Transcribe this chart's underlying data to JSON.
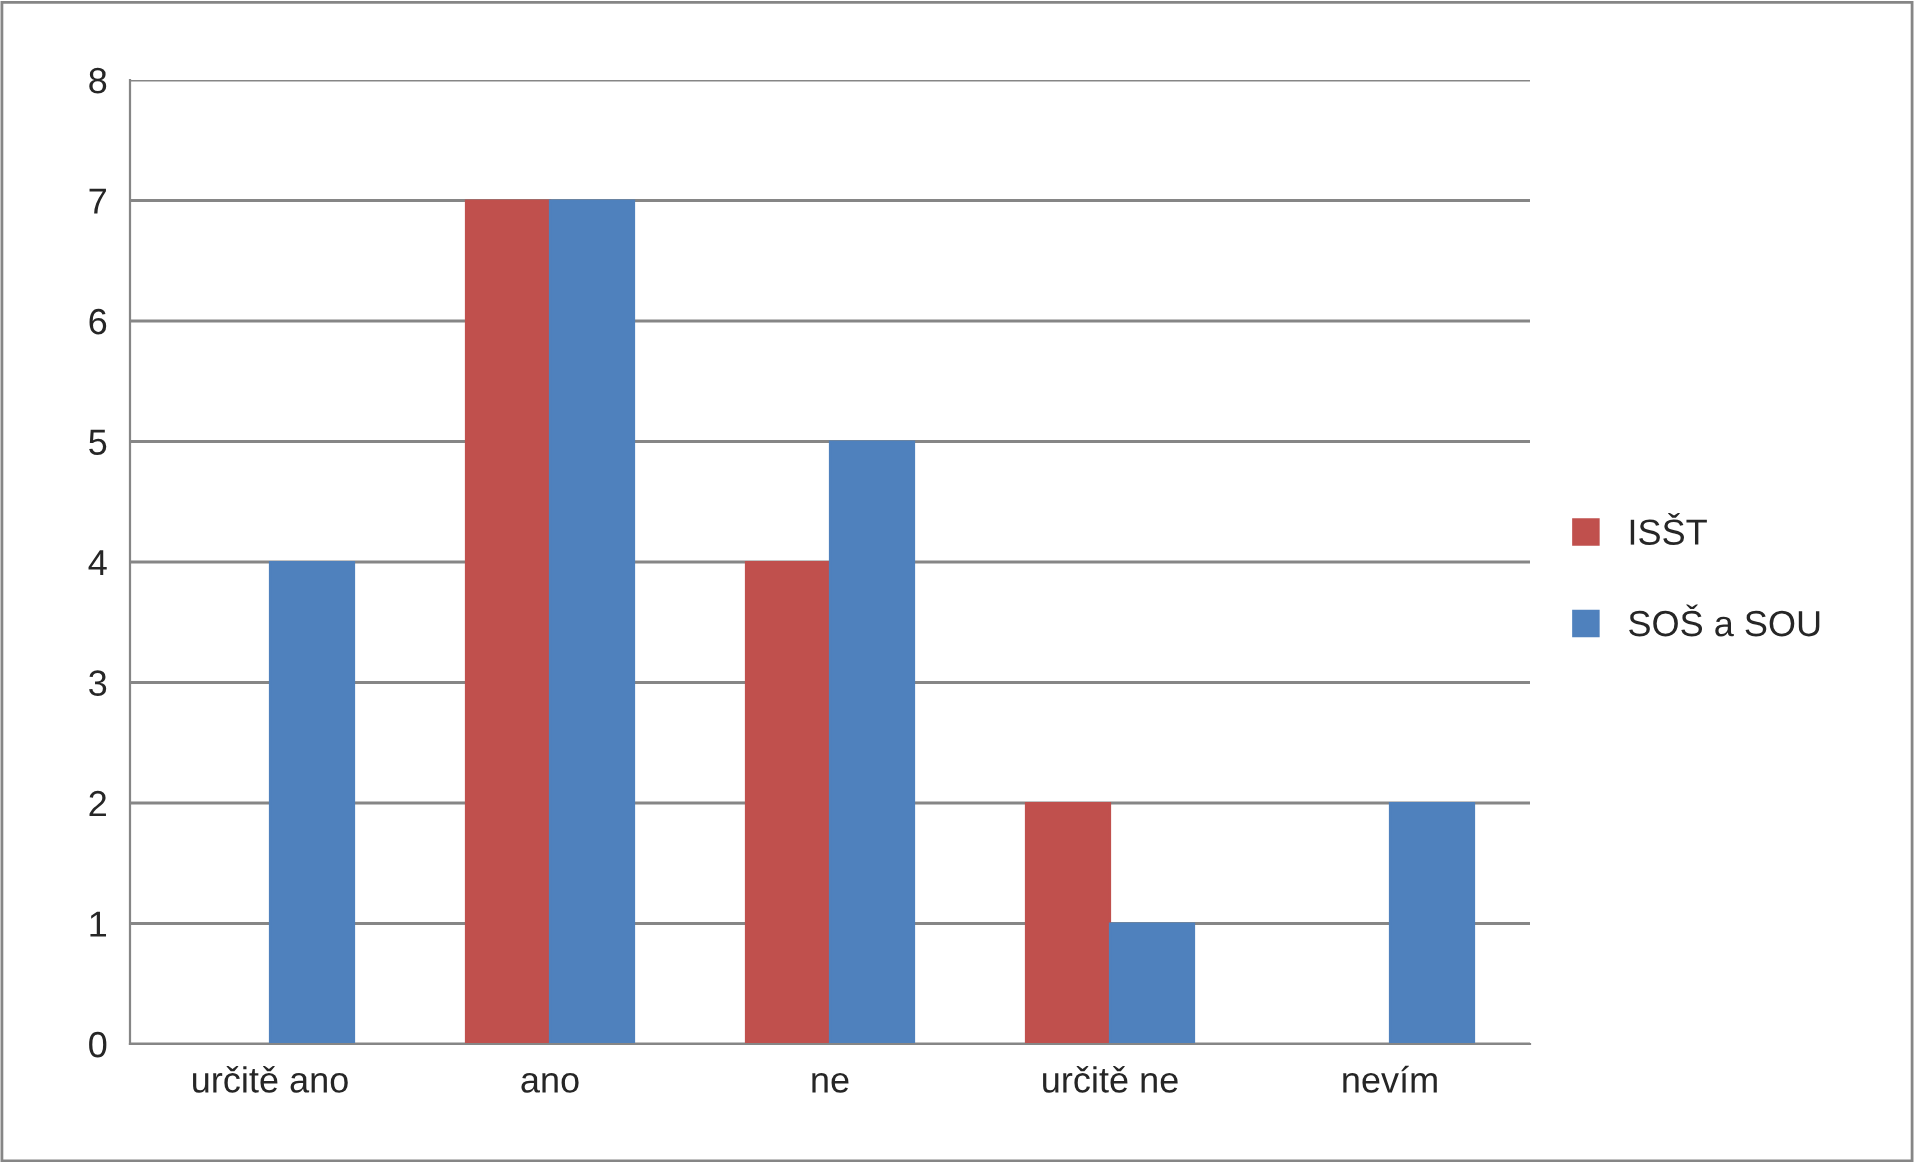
{
  "chart_data": {
    "type": "bar",
    "categories": [
      "určitě ano",
      "ano",
      "ne",
      "určitě ne",
      "nevím"
    ],
    "series": [
      {
        "name": "ISŠT",
        "color": "#c0504d",
        "values": [
          0,
          7,
          4,
          2,
          0
        ]
      },
      {
        "name": "SOŠ a SOU",
        "color": "#4f81bd",
        "values": [
          4,
          7,
          5,
          1,
          2
        ]
      }
    ],
    "ylim": [
      0,
      8
    ],
    "yticks": [
      0,
      1,
      2,
      3,
      4,
      5,
      6,
      7,
      8
    ],
    "grid": "y",
    "legend": "right"
  }
}
